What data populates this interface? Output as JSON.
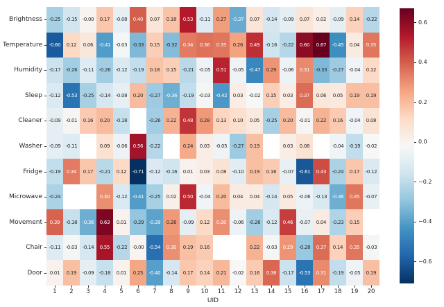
{
  "chart_data": {
    "type": "heatmap",
    "title": "",
    "xlabel": "UID",
    "ylabel": "",
    "rows": [
      "Brightness",
      "Temperature",
      "Humidity",
      "Sleep",
      "Cleaner",
      "Washer",
      "Fridge",
      "Microwave",
      "Movement",
      "Chair",
      "Door"
    ],
    "columns": [
      "1",
      "2",
      "3",
      "4",
      "5",
      "6",
      "7",
      "8",
      "9",
      "10",
      "11",
      "12",
      "13",
      "14",
      "15",
      "16",
      "17",
      "18",
      "19",
      "20"
    ],
    "values": [
      [
        "-0.25",
        "-0.15",
        "-0.00",
        "0.17",
        "-0.08",
        "0.40",
        "0.07",
        "0.18",
        "0.53",
        "-0.11",
        "0.27",
        "-0.37",
        "0.07",
        "-0.14",
        "-0.09",
        "0.07",
        "0.02",
        "-0.09",
        "0.14",
        "-0.22"
      ],
      [
        "-0.60",
        "0.12",
        "0.06",
        "-0.41",
        "-0.03",
        "-0.33",
        "0.15",
        "-0.32",
        "0.34",
        "0.36",
        "0.35",
        "0.26",
        "0.49",
        "-0.16",
        "-0.22",
        "0.60",
        "0.67",
        "-0.45",
        "0.04",
        "0.35"
      ],
      [
        "-0.17",
        "-0.26",
        "-0.11",
        "-0.26",
        "-0.12",
        "-0.19",
        "0.18",
        "0.15",
        "-0.21",
        "-0.05",
        "0.51",
        "-0.05",
        "-0.47",
        "0.29",
        "-0.06",
        "0.31",
        "-0.33",
        "-0.27",
        "-0.04",
        "0.12"
      ],
      [
        "-0.12",
        "-0.53",
        "-0.25",
        "-0.14",
        "-0.08",
        "0.20",
        "-0.27",
        "-0.36",
        "-0.19",
        "-0.03",
        "-0.42",
        "0.03",
        "-0.02",
        "0.15",
        "0.03",
        "0.37",
        "0.06",
        "0.05",
        "0.19",
        "0.19"
      ],
      [
        "-0.09",
        "-0.01",
        "0.16",
        "0.20",
        "-0.18",
        null,
        "-0.26",
        "0.22",
        "0.48",
        "0.28",
        "0.13",
        "0.10",
        "0.05",
        "-0.25",
        "0.20",
        "-0.01",
        "0.22",
        "0.16",
        "-0.04",
        "0.08"
      ],
      [
        "-0.09",
        "-0.11",
        null,
        "0.09",
        "-0.06",
        "0.56",
        "-0.22",
        null,
        "0.24",
        "0.03",
        "-0.05",
        "-0.27",
        "0.19",
        null,
        "0.03",
        "0.08",
        null,
        "-0.04",
        "-0.19",
        "-0.02"
      ],
      [
        "-0.19",
        "0.34",
        "0.17",
        "-0.21",
        "0.12",
        "-0.71",
        "-0.12",
        "-0.16",
        "0.01",
        "0.03",
        "0.08",
        "-0.10",
        "0.19",
        "0.16",
        "-0.07",
        "-0.61",
        "0.43",
        "-0.24",
        "0.17",
        "-0.12"
      ],
      [
        "-0.24",
        null,
        null,
        "0.30",
        "-0.12",
        "-0.41",
        "-0.25",
        "0.02",
        "0.50",
        "-0.04",
        "0.20",
        "0.04",
        "0.04",
        "-0.14",
        "0.05",
        "-0.06",
        "-0.13",
        "-0.36",
        "0.35",
        "-0.07"
      ],
      [
        "0.39",
        "-0.18",
        "-0.36",
        "0.63",
        "0.01",
        "-0.29",
        "-0.39",
        "0.28",
        "-0.09",
        "0.12",
        "0.30",
        "-0.06",
        "-0.26",
        "-0.12",
        "0.46",
        "-0.07",
        "0.04",
        "-0.23",
        "0.15",
        null
      ],
      [
        "-0.11",
        "-0.03",
        "-0.14",
        "0.55",
        "-0.22",
        "-0.00",
        "-0.54",
        "0.30",
        "0.19",
        "0.16",
        null,
        null,
        "0.22",
        "-0.03",
        "0.29",
        "-0.28",
        "0.37",
        "0.14",
        "0.35",
        "-0.03"
      ],
      [
        "0.01",
        "0.19",
        "-0.09",
        "-0.18",
        "0.01",
        "0.25",
        "-0.40",
        "-0.14",
        "0.17",
        "0.14",
        "0.21",
        "-0.02",
        "0.16",
        "0.38",
        "-0.17",
        "-0.53",
        "0.31",
        "-0.19",
        "-0.05",
        "0.19"
      ]
    ],
    "vmin": -0.71,
    "vmax": 0.67,
    "colormap": "RdBu_r",
    "colormap_anchors": [
      "#053061",
      "#2166ac",
      "#4393c3",
      "#92c5de",
      "#d1e5f0",
      "#f7f7f7",
      "#fddbc7",
      "#f4a582",
      "#d6604d",
      "#b2182b",
      "#67001f"
    ],
    "nan_color": "#ffffff",
    "annotation_dark_color": "#262626",
    "annotation_light_color": "#ffffff",
    "luminance_text_threshold": 0.394,
    "text_color_overrides": [
      {
        "row": "Chair",
        "column": "15",
        "color": "#ffffff"
      }
    ],
    "axis_text_color": "#262626",
    "grid": false,
    "legend_position": "right-colorbar",
    "colorbar": {
      "ticks": [
        "0.6",
        "0.4",
        "0.2",
        "0.0",
        "−0.2",
        "−0.4",
        "−0.6"
      ],
      "tick_values": [
        0.6,
        0.4,
        0.2,
        0.0,
        -0.2,
        -0.4,
        -0.6
      ]
    }
  }
}
